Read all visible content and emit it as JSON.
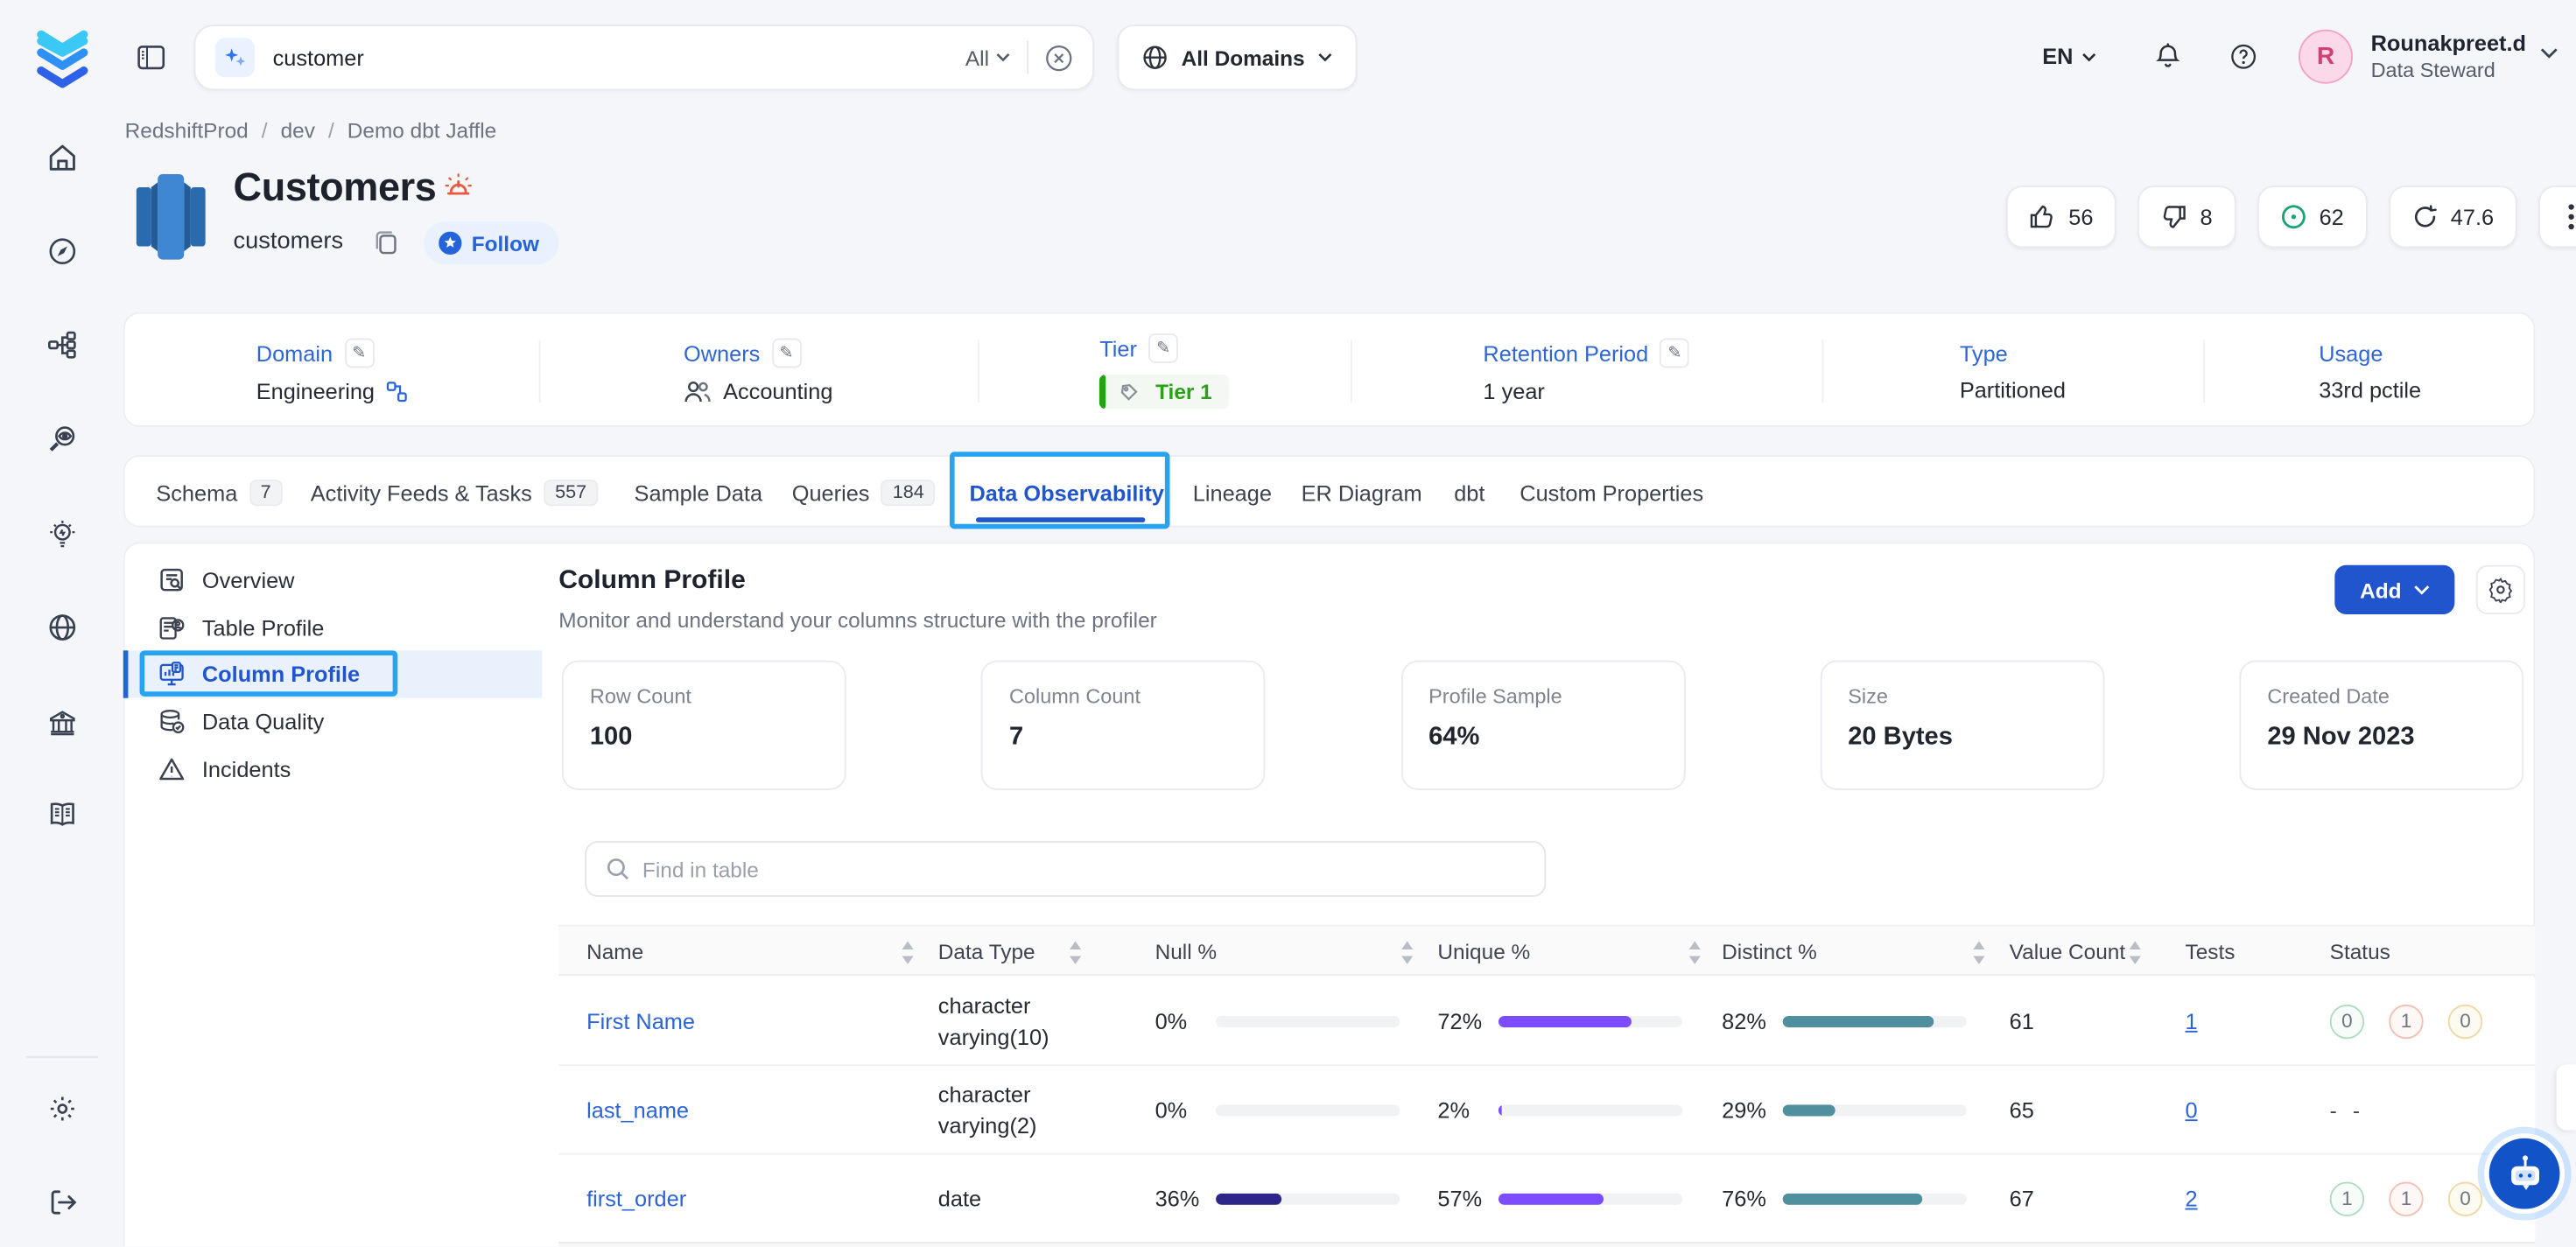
{
  "topbar": {
    "search": {
      "value": "customer",
      "scope": "All"
    },
    "domains_button": "All Domains",
    "language": "EN",
    "user": {
      "initial": "R",
      "name": "Rounakpreet.d",
      "role": "Data Steward"
    }
  },
  "breadcrumb": {
    "items": [
      "RedshiftProd",
      "dev",
      "Demo dbt Jaffle"
    ],
    "separator": "/"
  },
  "asset": {
    "title": "Customers",
    "qualified_name": "customers",
    "follow_label": "Follow",
    "stats": {
      "upvotes": "56",
      "downvotes": "8",
      "completeness_score": "62",
      "popularity": "47.6"
    }
  },
  "metadata": [
    {
      "label": "Domain",
      "value": "Engineering"
    },
    {
      "label": "Owners",
      "value": "Accounting"
    },
    {
      "label": "Tier",
      "value": "Tier 1"
    },
    {
      "label": "Retention Period",
      "value": "1 year"
    },
    {
      "label": "Type",
      "value": "Partitioned"
    },
    {
      "label": "Usage",
      "value": "33rd pctile"
    }
  ],
  "tabs": [
    {
      "label": "Schema",
      "badge": "7"
    },
    {
      "label": "Activity Feeds & Tasks",
      "badge": "557"
    },
    {
      "label": "Sample Data"
    },
    {
      "label": "Queries",
      "badge": "184"
    },
    {
      "label": "Data Observability",
      "active": true
    },
    {
      "label": "Lineage"
    },
    {
      "label": "ER Diagram"
    },
    {
      "label": "dbt"
    },
    {
      "label": "Custom Properties"
    }
  ],
  "subnav": [
    {
      "label": "Overview"
    },
    {
      "label": "Table Profile"
    },
    {
      "label": "Column Profile",
      "active": true
    },
    {
      "label": "Data Quality"
    },
    {
      "label": "Incidents"
    }
  ],
  "panel": {
    "title": "Column Profile",
    "subtitle": "Monitor and understand your columns structure with the profiler",
    "add_label": "Add"
  },
  "summary_cards": [
    {
      "label": "Row Count",
      "value": "100"
    },
    {
      "label": "Column Count",
      "value": "7"
    },
    {
      "label": "Profile Sample",
      "value": "64%"
    },
    {
      "label": "Size",
      "value": "20 Bytes"
    },
    {
      "label": "Created Date",
      "value": "29 Nov 2023"
    }
  ],
  "profile_table": {
    "search_placeholder": "Find in table",
    "columns": [
      "Name",
      "Data Type",
      "Null %",
      "Unique %",
      "Distinct %",
      "Value Count",
      "Tests",
      "Status"
    ],
    "rows": [
      {
        "name": "First Name",
        "data_type_line1": "character",
        "data_type_line2": "varying(10)",
        "null_pct": "0%",
        "null_val": 0,
        "unique_pct": "72%",
        "unique_val": 72,
        "distinct_pct": "82%",
        "distinct_val": 82,
        "value_count": "61",
        "tests": "1",
        "status": {
          "passed": "0",
          "failed": "1",
          "warning": "0"
        }
      },
      {
        "name": "last_name",
        "data_type_line1": "character",
        "data_type_line2": "varying(2)",
        "null_pct": "0%",
        "null_val": 0,
        "unique_pct": "2%",
        "unique_val": 2,
        "distinct_pct": "29%",
        "distinct_val": 29,
        "value_count": "65",
        "tests": "0",
        "status_empty": "- -"
      },
      {
        "name": "first_order",
        "data_type_line1": "date",
        "data_type_line2": "",
        "null_pct": "36%",
        "null_val": 36,
        "unique_pct": "57%",
        "unique_val": 57,
        "distinct_pct": "76%",
        "distinct_val": 76,
        "value_count": "67",
        "tests": "2",
        "status": {
          "passed": "1",
          "failed": "1",
          "warning": "0"
        }
      }
    ]
  },
  "colors": {
    "primary_blue": "#2155cd",
    "link_blue": "#2b63d8",
    "click_highlight": "#27a3f1",
    "tier_green": "#2aa216",
    "alert_red": "#e8593f",
    "score_green": "#18a474",
    "bar_null": "#2d2588",
    "bar_unique": "#7c4dff",
    "bar_distinct": "#50909e",
    "avatar_pink": "#d23f77"
  }
}
